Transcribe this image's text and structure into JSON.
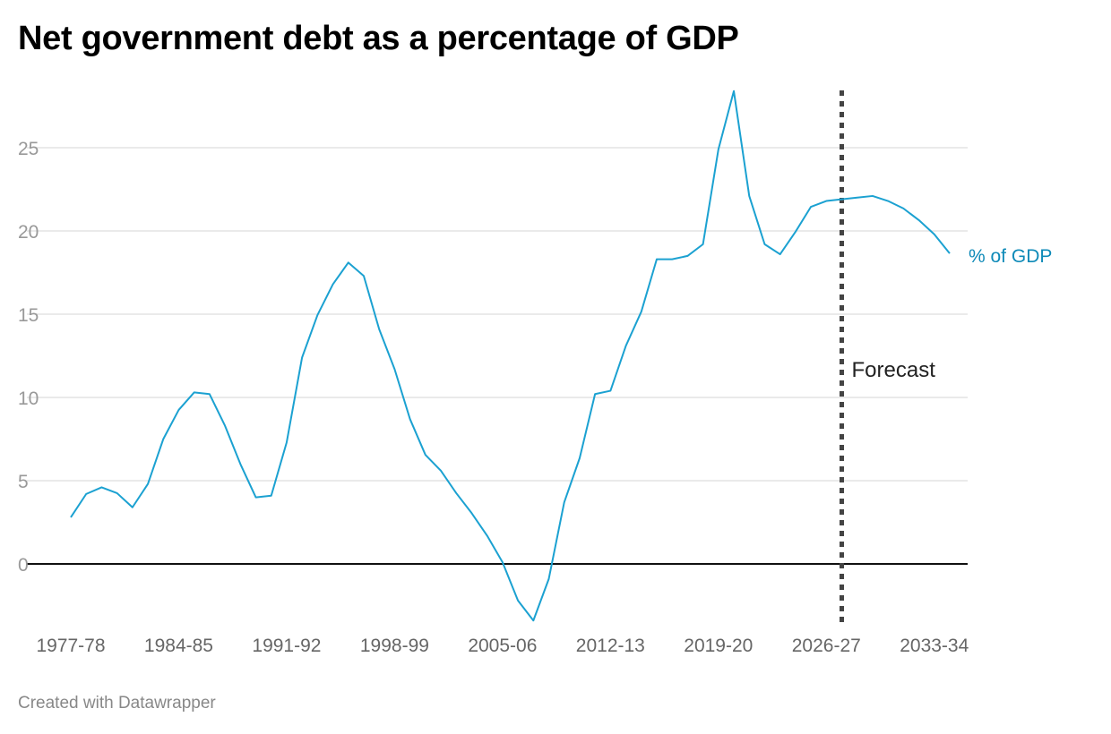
{
  "title": "Net government debt as a percentage of GDP",
  "footer": "Created with Datawrapper",
  "chart_data": {
    "type": "line",
    "title": "Net government debt as a percentage of GDP",
    "xlabel": "",
    "ylabel": "",
    "ylim": [
      -3.5,
      28.5
    ],
    "yticks": [
      0,
      5,
      10,
      15,
      20,
      25
    ],
    "xtick_labels": [
      "1977-78",
      "1984-85",
      "1991-92",
      "1998-99",
      "2005-06",
      "2012-13",
      "2019-20",
      "2026-27",
      "2033-34"
    ],
    "grid": true,
    "categories": [
      "1977-78",
      "1978-79",
      "1979-80",
      "1980-81",
      "1981-82",
      "1982-83",
      "1983-84",
      "1984-85",
      "1985-86",
      "1986-87",
      "1987-88",
      "1988-89",
      "1989-90",
      "1990-91",
      "1991-92",
      "1992-93",
      "1993-94",
      "1994-95",
      "1995-96",
      "1996-97",
      "1997-98",
      "1998-99",
      "1999-00",
      "2000-01",
      "2001-02",
      "2002-03",
      "2003-04",
      "2004-05",
      "2005-06",
      "2006-07",
      "2007-08",
      "2008-09",
      "2009-10",
      "2010-11",
      "2011-12",
      "2012-13",
      "2013-14",
      "2014-15",
      "2015-16",
      "2016-17",
      "2017-18",
      "2018-19",
      "2019-20",
      "2020-21",
      "2021-22",
      "2022-23",
      "2023-24",
      "2024-25",
      "2025-26",
      "2026-27",
      "2027-28",
      "2028-29",
      "2029-30",
      "2030-31",
      "2031-32",
      "2032-33",
      "2033-34",
      "2034-35"
    ],
    "series": [
      {
        "name": "% of GDP",
        "color": "#1ba1d1",
        "values": [
          2.8,
          4.2,
          4.6,
          4.25,
          3.4,
          4.8,
          7.5,
          9.25,
          10.3,
          10.2,
          8.3,
          6.0,
          4.0,
          4.1,
          7.3,
          12.4,
          14.95,
          16.8,
          18.1,
          17.3,
          14.1,
          11.7,
          8.7,
          6.55,
          5.6,
          4.25,
          3.05,
          1.7,
          0.1,
          -2.2,
          -3.4,
          -0.9,
          3.7,
          6.35,
          10.2,
          10.4,
          13.1,
          15.15,
          18.3,
          18.3,
          18.5,
          19.2,
          24.9,
          28.4,
          22.1,
          19.2,
          18.6,
          19.95,
          21.45,
          21.8,
          21.9,
          22.0,
          22.1,
          21.8,
          21.35,
          20.65,
          19.8,
          18.65
        ]
      }
    ],
    "annotations": [
      {
        "text": "Forecast",
        "at": "2027-28"
      }
    ],
    "series_label_color": "#0e8ab8"
  }
}
